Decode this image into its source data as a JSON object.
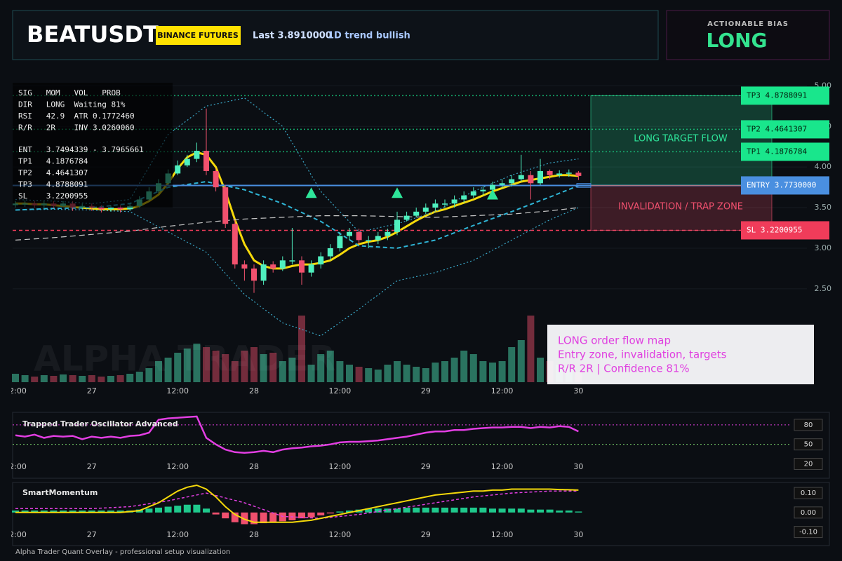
{
  "header": {
    "title": "BEATUSDT",
    "badge": "BINANCE FUTURES",
    "last": "Last 3.8910000",
    "trend": "1D trend bullish"
  },
  "bias": {
    "label": "ACTIONABLE BIAS",
    "value": "LONG"
  },
  "footer": "Alpha Trader Quant Overlay - professional setup visualization",
  "chart_data": [
    {
      "type": "candlestick",
      "categories": [
        "12:00",
        null,
        null,
        null,
        null,
        null,
        null,
        null,
        "27",
        null,
        null,
        null,
        null,
        null,
        null,
        null,
        null,
        "12:00",
        null,
        null,
        null,
        null,
        null,
        null,
        null,
        "28",
        null,
        null,
        null,
        null,
        null,
        null,
        null,
        null,
        "12:00",
        null,
        null,
        null,
        null,
        null,
        null,
        null,
        null,
        "29",
        null,
        null,
        null,
        null,
        null,
        null,
        null,
        "12:00",
        null,
        null,
        null,
        null,
        null,
        null,
        null,
        "30"
      ],
      "open": [
        3.53,
        3.55,
        3.55,
        3.53,
        3.55,
        3.52,
        3.55,
        3.5,
        3.52,
        3.5,
        3.48,
        3.5,
        3.48,
        3.52,
        3.6,
        3.7,
        3.8,
        3.92,
        4.02,
        4.1,
        4.2,
        3.95,
        3.75,
        3.3,
        2.8,
        2.75,
        2.6,
        2.8,
        2.75,
        2.85,
        2.85,
        2.7,
        2.8,
        2.9,
        3.0,
        3.15,
        3.2,
        3.1,
        3.1,
        3.15,
        3.2,
        3.35,
        3.4,
        3.45,
        3.5,
        3.55,
        3.55,
        3.6,
        3.65,
        3.7,
        3.72,
        3.78,
        3.8,
        3.85,
        3.9,
        3.8,
        3.95,
        3.9,
        3.92,
        3.93
      ],
      "high": [
        3.58,
        3.59,
        3.58,
        3.58,
        3.58,
        3.58,
        3.58,
        3.55,
        3.55,
        3.53,
        3.53,
        3.53,
        3.55,
        3.64,
        3.75,
        3.85,
        3.97,
        4.08,
        4.15,
        4.3,
        4.72,
        3.98,
        3.78,
        3.35,
        2.85,
        2.8,
        2.85,
        2.84,
        2.9,
        3.25,
        2.9,
        2.85,
        2.95,
        3.05,
        3.2,
        3.25,
        3.24,
        3.15,
        3.2,
        3.24,
        3.45,
        3.45,
        3.5,
        3.55,
        3.6,
        3.6,
        3.65,
        3.7,
        3.75,
        3.76,
        3.82,
        3.85,
        3.9,
        4.15,
        3.95,
        4.1,
        3.97,
        3.96,
        3.97,
        3.95
      ],
      "low": [
        3.5,
        3.51,
        3.5,
        3.5,
        3.49,
        3.5,
        3.46,
        3.48,
        3.46,
        3.44,
        3.45,
        3.44,
        3.46,
        3.5,
        3.58,
        3.68,
        3.78,
        3.9,
        4.0,
        4.06,
        3.9,
        3.7,
        3.25,
        2.75,
        2.6,
        2.45,
        2.55,
        2.7,
        2.72,
        2.8,
        2.55,
        2.65,
        2.75,
        2.85,
        2.96,
        3.1,
        3.05,
        3.0,
        3.05,
        3.1,
        3.16,
        3.33,
        3.38,
        3.42,
        3.46,
        3.5,
        3.5,
        3.56,
        3.62,
        3.65,
        3.68,
        3.74,
        3.76,
        3.82,
        3.6,
        3.78,
        3.85,
        3.87,
        3.88,
        3.84
      ],
      "close": [
        3.55,
        3.55,
        3.53,
        3.55,
        3.52,
        3.55,
        3.5,
        3.52,
        3.5,
        3.48,
        3.5,
        3.48,
        3.52,
        3.6,
        3.7,
        3.8,
        3.92,
        4.02,
        4.1,
        4.2,
        3.95,
        3.75,
        3.3,
        2.8,
        2.75,
        2.6,
        2.8,
        2.75,
        2.85,
        2.85,
        2.7,
        2.8,
        2.9,
        3.0,
        3.15,
        3.2,
        3.1,
        3.1,
        3.15,
        3.2,
        3.35,
        3.4,
        3.45,
        3.5,
        3.55,
        3.55,
        3.6,
        3.65,
        3.7,
        3.72,
        3.78,
        3.8,
        3.85,
        3.9,
        3.8,
        3.95,
        3.9,
        3.92,
        3.93,
        3.89
      ],
      "volume": [
        12,
        10,
        8,
        10,
        9,
        11,
        10,
        9,
        10,
        8,
        9,
        10,
        12,
        15,
        20,
        30,
        35,
        42,
        48,
        55,
        50,
        45,
        40,
        30,
        45,
        50,
        40,
        42,
        30,
        35,
        95,
        25,
        40,
        45,
        30,
        25,
        22,
        20,
        18,
        25,
        30,
        25,
        22,
        20,
        28,
        30,
        35,
        45,
        40,
        30,
        28,
        30,
        50,
        60,
        95,
        35,
        30,
        25,
        20,
        15
      ],
      "up_color": "#4ff0bf",
      "down_color": "#f2516e",
      "ylim": [
        1.35,
        5.15
      ],
      "yticks": [
        {
          "value": 2.5,
          "label": "2.50"
        },
        {
          "value": 3,
          "label": "3.00"
        },
        {
          "value": 3.5,
          "label": "3.50"
        },
        {
          "value": 4,
          "label": "4.00"
        },
        {
          "value": 4.5,
          "label": "4.50"
        },
        {
          "value": 5,
          "label": "5.00"
        }
      ],
      "overlays": {
        "ma": {
          "color": "#f5d90a",
          "values": [
            3.55,
            3.55,
            3.54,
            3.54,
            3.53,
            3.52,
            3.51,
            3.5,
            3.49,
            3.48,
            3.48,
            3.48,
            3.49,
            3.52,
            3.58,
            3.66,
            3.8,
            3.98,
            4.12,
            4.18,
            4.15,
            4.0,
            3.7,
            3.35,
            3.05,
            2.85,
            2.78,
            2.75,
            2.75,
            2.78,
            2.8,
            2.8,
            2.82,
            2.85,
            2.92,
            3.0,
            3.05,
            3.08,
            3.1,
            3.14,
            3.2,
            3.27,
            3.34,
            3.4,
            3.45,
            3.48,
            3.52,
            3.56,
            3.6,
            3.65,
            3.7,
            3.74,
            3.78,
            3.82,
            3.84,
            3.86,
            3.88,
            3.9,
            3.9,
            3.89
          ]
        },
        "upper": {
          "color": "#3aa7c7",
          "dash": "2,3",
          "x": [
            0,
            4,
            8,
            12,
            16,
            20,
            24,
            28,
            32,
            36,
            40,
            44,
            48,
            52,
            56,
            59
          ],
          "values": [
            3.6,
            3.58,
            3.55,
            3.6,
            4.4,
            4.75,
            4.85,
            4.5,
            3.7,
            3.2,
            3.3,
            3.45,
            3.7,
            3.9,
            4.05,
            4.1
          ]
        },
        "lower": {
          "color": "#3aa7c7",
          "dash": "2,3",
          "x": [
            0,
            4,
            8,
            12,
            16,
            20,
            24,
            28,
            32,
            36,
            40,
            44,
            48,
            52,
            56,
            59
          ],
          "values": [
            3.47,
            3.48,
            3.47,
            3.45,
            3.2,
            2.95,
            2.43,
            2.08,
            1.92,
            2.25,
            2.6,
            2.7,
            2.85,
            3.1,
            3.35,
            3.5
          ]
        },
        "basis": {
          "color": "#2fb5d6",
          "dash": "6,4",
          "x": [
            0,
            4,
            8,
            12,
            16,
            20,
            24,
            28,
            32,
            36,
            40,
            44,
            48,
            52,
            56,
            59
          ],
          "values": [
            3.47,
            3.49,
            3.5,
            3.55,
            3.75,
            3.82,
            3.72,
            3.55,
            3.33,
            3.03,
            3.0,
            3.1,
            3.28,
            3.45,
            3.63,
            3.77
          ]
        },
        "long": {
          "color": "#c8c8c8",
          "dash": "8,5",
          "x": [
            0,
            4,
            8,
            12,
            16,
            20,
            24,
            28,
            32,
            36,
            40,
            44,
            48,
            52,
            56,
            59
          ],
          "values": [
            3.1,
            3.13,
            3.17,
            3.21,
            3.27,
            3.32,
            3.36,
            3.38,
            3.4,
            3.4,
            3.39,
            3.38,
            3.4,
            3.42,
            3.46,
            3.5
          ]
        }
      },
      "signals": {
        "color": "#2ee59a",
        "x": [
          31,
          40,
          50
        ],
        "values": [
          3.68,
          3.68,
          3.66
        ]
      },
      "levels": [
        {
          "name": "TP3",
          "price": 4.8788091,
          "color": "#19e68c",
          "text_color": "#04210f",
          "line": "dotted"
        },
        {
          "name": "TP2",
          "price": 4.4641307,
          "color": "#19e68c",
          "text_color": "#04210f",
          "line": "dotted"
        },
        {
          "name": "TP1",
          "price": 4.1876784,
          "color": "#19e68c",
          "text_color": "#04210f",
          "line": "dotted"
        },
        {
          "name": "ENTRY",
          "price": 3.773,
          "price_label": "3.7730000",
          "color": "#4a8fe0",
          "text_color": "#ffffff",
          "line": "solid"
        },
        {
          "name": "SL",
          "price": 3.2200955,
          "color": "#f03c5a",
          "text_color": "#ffffff",
          "line": "dashed"
        }
      ],
      "entry_zone": [
        3.7494339,
        3.7965661
      ],
      "zones": [
        {
          "label": "LONG TARGET FLOW",
          "color": "#2ee59a"
        },
        {
          "label": "INVALIDATION / TRAP ZONE",
          "color": "#f0506e"
        }
      ],
      "info": {
        "stats": [
          "SIG   MOM   VOL   PROB",
          "DIR   LONG  Waiting 81%",
          "RSI   42.9  ATR 0.1772460",
          "R/R   2R    INV 3.0260060"
        ],
        "targets": [
          "ENT   3.7494339 - 3.7965661",
          "TP1   4.1876784",
          "TP2   4.4641307",
          "TP3   4.8788091",
          "SL    3.2200955"
        ]
      },
      "watermark": "ALPHA TRADER",
      "note": [
        "LONG order flow map",
        "Entry zone, invalidation, targets",
        "R/R 2R | Confidence 81%"
      ]
    },
    {
      "type": "line",
      "title": "Trapped Trader Oscillator Advanced",
      "color": "#e23ee2",
      "values": [
        64,
        62,
        65,
        60,
        63,
        62,
        63,
        58,
        62,
        60,
        62,
        60,
        63,
        64,
        68,
        88,
        90,
        91,
        92,
        93,
        60,
        50,
        42,
        38,
        37,
        38,
        40,
        38,
        42,
        44,
        45,
        47,
        48,
        50,
        53,
        54,
        54,
        55,
        56,
        58,
        60,
        62,
        65,
        68,
        70,
        70,
        72,
        72,
        74,
        75,
        76,
        76,
        77,
        77,
        75,
        77,
        76,
        78,
        77,
        70
      ],
      "ylim": [
        0,
        95
      ],
      "yticks": [
        80,
        50,
        20
      ],
      "guide_lines": [
        {
          "value": 80,
          "color": "#e23ee2"
        },
        {
          "value": 50,
          "color": "#7ad46b"
        }
      ]
    },
    {
      "type": "bar",
      "title": "SmartMomentum",
      "pos_color": "#1fc98c",
      "neg_color": "#f0506e",
      "values": [
        0.01,
        0.01,
        0.01,
        0.01,
        0.01,
        0.01,
        0.01,
        0.01,
        0.01,
        0.01,
        0.01,
        0.01,
        0.01,
        0.015,
        0.02,
        0.025,
        0.03,
        0.035,
        0.04,
        0.04,
        0.02,
        -0.01,
        -0.03,
        -0.05,
        -0.06,
        -0.06,
        -0.055,
        -0.05,
        -0.045,
        -0.04,
        -0.03,
        -0.025,
        -0.015,
        -0.005,
        0.005,
        0.01,
        0.015,
        0.02,
        0.02,
        0.02,
        0.02,
        0.025,
        0.025,
        0.025,
        0.025,
        0.025,
        0.025,
        0.025,
        0.025,
        0.025,
        0.02,
        0.02,
        0.02,
        0.02,
        0.015,
        0.015,
        0.015,
        0.01,
        0.01,
        0.005
      ],
      "line": {
        "color": "#f5d90a",
        "values": [
          0,
          0,
          0,
          0,
          0,
          0,
          0,
          0,
          0,
          0,
          0,
          0,
          0.005,
          0.01,
          0.03,
          0.05,
          0.08,
          0.11,
          0.13,
          0.14,
          0.12,
          0.08,
          0.03,
          -0.01,
          -0.035,
          -0.05,
          -0.05,
          -0.05,
          -0.05,
          -0.05,
          -0.045,
          -0.04,
          -0.03,
          -0.02,
          -0.01,
          0,
          0.01,
          0.02,
          0.03,
          0.04,
          0.05,
          0.06,
          0.07,
          0.08,
          0.09,
          0.095,
          0.1,
          0.105,
          0.11,
          0.11,
          0.115,
          0.115,
          0.12,
          0.12,
          0.12,
          0.12,
          0.12,
          0.118,
          0.117,
          0.115
        ]
      },
      "signal": {
        "color": "#e23ee2",
        "x": [
          0,
          4,
          8,
          12,
          16,
          20,
          24,
          28,
          32,
          36,
          40,
          44,
          48,
          52,
          56,
          59
        ],
        "values": [
          0.02,
          0.02,
          0.02,
          0.03,
          0.06,
          0.1,
          0.05,
          -0.02,
          -0.03,
          -0.01,
          0.02,
          0.05,
          0.08,
          0.1,
          0.11,
          0.11
        ]
      },
      "ylim": [
        -0.17,
        0.14
      ],
      "yticks": [
        {
          "value": 0.1,
          "label": "0.10"
        },
        {
          "value": 0,
          "label": "0.00"
        },
        {
          "value": -0.1,
          "label": "-0.10"
        }
      ]
    }
  ]
}
